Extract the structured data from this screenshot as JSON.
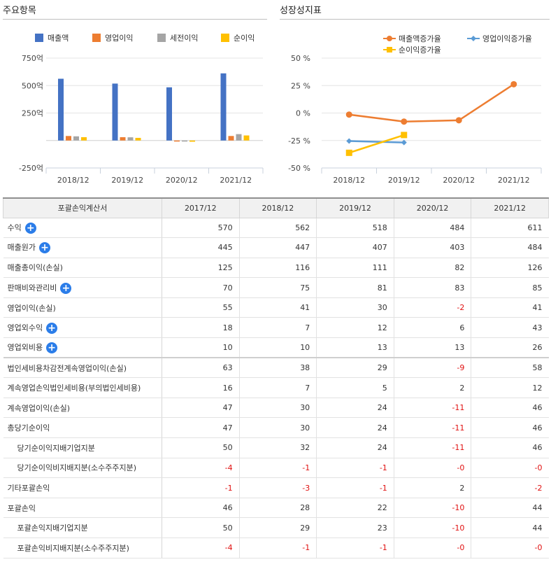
{
  "left_section_title": "주요항목",
  "right_section_title": "성장성지표",
  "chart_data": [
    {
      "type": "bar",
      "categories": [
        "2018/12",
        "2019/12",
        "2020/12",
        "2021/12"
      ],
      "series": [
        {
          "name": "매출액",
          "color": "#4472c4",
          "values": [
            562,
            518,
            484,
            611
          ]
        },
        {
          "name": "영업이익",
          "color": "#ed7d31",
          "values": [
            41,
            30,
            -2,
            41
          ]
        },
        {
          "name": "세전이익",
          "color": "#a5a5a5",
          "values": [
            38,
            29,
            -9,
            58
          ]
        },
        {
          "name": "순이익",
          "color": "#ffc000",
          "values": [
            30,
            24,
            -11,
            46
          ]
        }
      ],
      "ylim": [
        -250,
        750
      ],
      "yticks": [
        -250,
        250,
        500,
        750
      ],
      "ytick_labels": [
        "-250억",
        "250억",
        "500억",
        "750억"
      ],
      "legend": "top"
    },
    {
      "type": "line",
      "categories": [
        "2018/12",
        "2019/12",
        "2020/12",
        "2021/12"
      ],
      "series": [
        {
          "name": "매출액증가율",
          "color": "#ed7d31",
          "marker": "circle",
          "values": [
            -1.4,
            -7.8,
            -6.6,
            26.2
          ]
        },
        {
          "name": "영업이익증가율",
          "color": "#5b9bd5",
          "marker": "diamond",
          "values": [
            -25.5,
            -26.8,
            null,
            null
          ]
        },
        {
          "name": "순이익증가율",
          "color": "#ffc000",
          "marker": "square",
          "values": [
            -36.2,
            -20.0,
            null,
            null
          ]
        }
      ],
      "ylim": [
        -50,
        50
      ],
      "yticks": [
        -50,
        -25,
        0,
        25,
        50
      ],
      "ytick_labels": [
        "-50 %",
        "-25 %",
        "0 %",
        "25 %",
        "50 %"
      ],
      "legend": "top"
    }
  ],
  "table": {
    "header_label": "포괄손익계산서",
    "columns": [
      "2017/12",
      "2018/12",
      "2019/12",
      "2020/12",
      "2021/12"
    ],
    "rows": [
      {
        "label": "수익",
        "expand": true,
        "values": [
          "570",
          "562",
          "518",
          "484",
          "611"
        ]
      },
      {
        "label": "매출원가",
        "expand": true,
        "values": [
          "445",
          "447",
          "407",
          "403",
          "484"
        ]
      },
      {
        "label": "매출총이익(손실)",
        "values": [
          "125",
          "116",
          "111",
          "82",
          "126"
        ]
      },
      {
        "label": "판매비와관리비",
        "expand": true,
        "values": [
          "70",
          "75",
          "81",
          "83",
          "85"
        ]
      },
      {
        "label": "영업이익(손실)",
        "values": [
          "55",
          "41",
          "30",
          "-2",
          "41"
        ]
      },
      {
        "label": "영업외수익",
        "expand": true,
        "values": [
          "18",
          "7",
          "12",
          "6",
          "43"
        ]
      },
      {
        "label": "영업외비용",
        "expand": true,
        "values": [
          "10",
          "10",
          "13",
          "13",
          "26"
        ]
      },
      {
        "label": "법인세비용차감전계속영업이익(손실)",
        "group_start": true,
        "values": [
          "63",
          "38",
          "29",
          "-9",
          "58"
        ]
      },
      {
        "label": "계속영업손익법인세비용(부의법인세비용)",
        "values": [
          "16",
          "7",
          "5",
          "2",
          "12"
        ]
      },
      {
        "label": "계속영업이익(손실)",
        "values": [
          "47",
          "30",
          "24",
          "-11",
          "46"
        ]
      },
      {
        "label": "총당기순이익",
        "values": [
          "47",
          "30",
          "24",
          "-11",
          "46"
        ]
      },
      {
        "label": "당기순이익지배기업지분",
        "indent": true,
        "values": [
          "50",
          "32",
          "24",
          "-11",
          "46"
        ]
      },
      {
        "label": "당기순이익비지배지분(소수주주지분)",
        "indent": true,
        "values": [
          "-4",
          "-1",
          "-1",
          "-0",
          "-0"
        ]
      },
      {
        "label": "기타포괄손익",
        "values": [
          "-1",
          "-3",
          "-1",
          "2",
          "-2"
        ]
      },
      {
        "label": "포괄손익",
        "values": [
          "46",
          "28",
          "22",
          "-10",
          "44"
        ]
      },
      {
        "label": "포괄손익지배기업지분",
        "indent": true,
        "values": [
          "50",
          "29",
          "23",
          "-10",
          "44"
        ]
      },
      {
        "label": "포괄손익비지배지분(소수주주지분)",
        "indent": true,
        "values": [
          "-4",
          "-1",
          "-1",
          "-0",
          "-0"
        ]
      }
    ]
  }
}
